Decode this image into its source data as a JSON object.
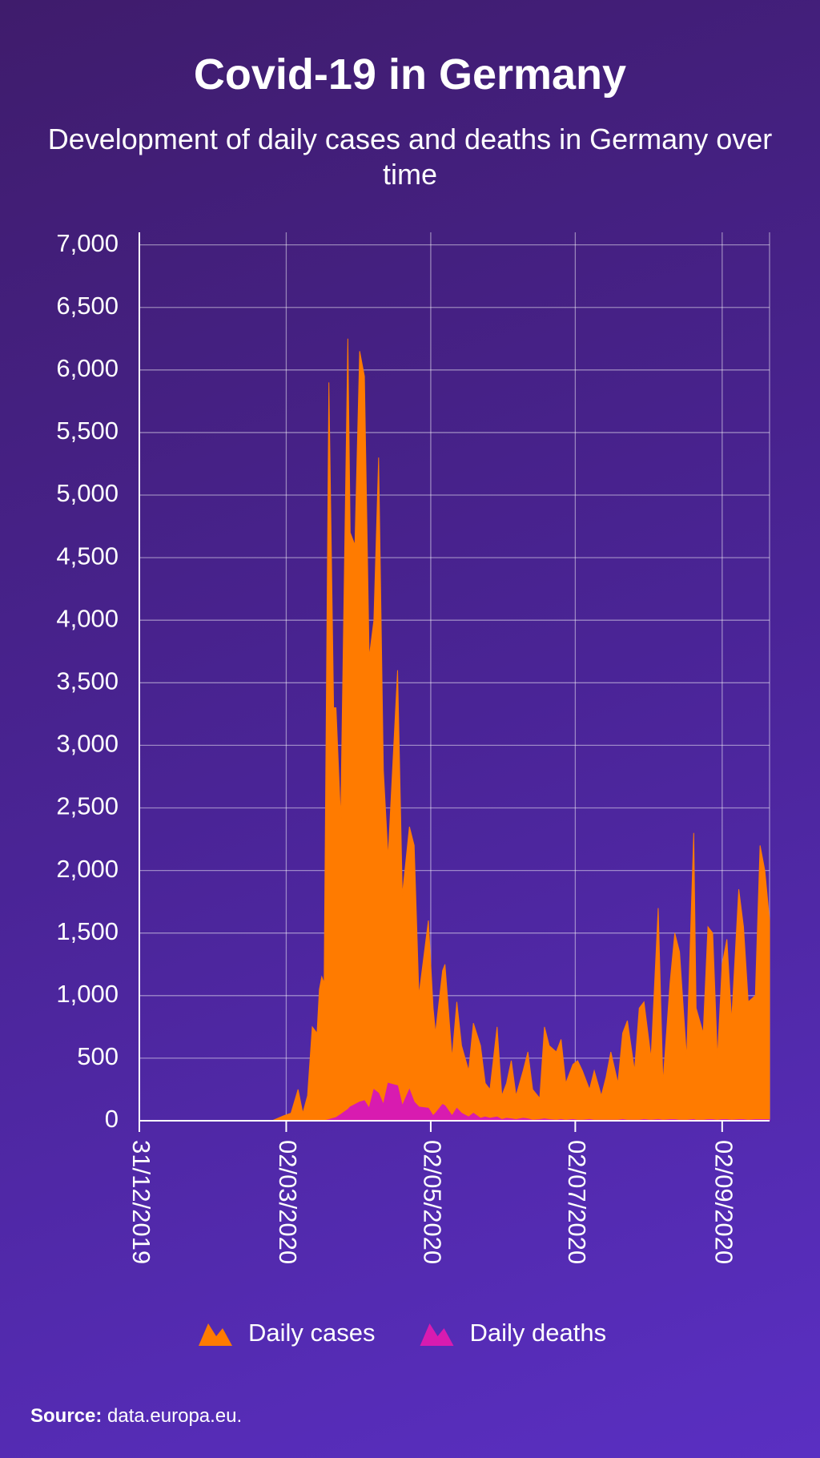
{
  "chart_data": {
    "type": "area",
    "title": "Covid-19 in Germany",
    "subtitle": "Development of daily cases and deaths in Germany over time",
    "source_label": "Source:",
    "source_text": "data.europa.eu.",
    "x": [
      "2019-12-31",
      "2020-02-25",
      "2020-03-01",
      "2020-03-04",
      "2020-03-07",
      "2020-03-09",
      "2020-03-11",
      "2020-03-13",
      "2020-03-15",
      "2020-03-16",
      "2020-03-17",
      "2020-03-18",
      "2020-03-20",
      "2020-03-22",
      "2020-03-23",
      "2020-03-25",
      "2020-03-28",
      "2020-03-29",
      "2020-03-31",
      "2020-04-02",
      "2020-04-04",
      "2020-04-06",
      "2020-04-08",
      "2020-04-10",
      "2020-04-12",
      "2020-04-14",
      "2020-04-18",
      "2020-04-20",
      "2020-04-23",
      "2020-04-25",
      "2020-04-27",
      "2020-05-01",
      "2020-05-03",
      "2020-05-04",
      "2020-05-07",
      "2020-05-08",
      "2020-05-11",
      "2020-05-13",
      "2020-05-15",
      "2020-05-18",
      "2020-05-20",
      "2020-05-23",
      "2020-05-25",
      "2020-05-27",
      "2020-05-30",
      "2020-06-01",
      "2020-06-03",
      "2020-06-05",
      "2020-06-07",
      "2020-06-10",
      "2020-06-12",
      "2020-06-14",
      "2020-06-17",
      "2020-06-19",
      "2020-06-21",
      "2020-06-24",
      "2020-06-26",
      "2020-06-28",
      "2020-07-01",
      "2020-07-03",
      "2020-07-05",
      "2020-07-08",
      "2020-07-10",
      "2020-07-13",
      "2020-07-15",
      "2020-07-17",
      "2020-07-20",
      "2020-07-22",
      "2020-07-24",
      "2020-07-27",
      "2020-07-29",
      "2020-07-31",
      "2020-08-03",
      "2020-08-06",
      "2020-08-08",
      "2020-08-11",
      "2020-08-13",
      "2020-08-15",
      "2020-08-18",
      "2020-08-21",
      "2020-08-22",
      "2020-08-25",
      "2020-08-27",
      "2020-08-29",
      "2020-08-31",
      "2020-09-02",
      "2020-09-04",
      "2020-09-06",
      "2020-09-09",
      "2020-09-11",
      "2020-09-13",
      "2020-09-16",
      "2020-09-18",
      "2020-09-20",
      "2020-09-22"
    ],
    "series": [
      {
        "name": "Daily cases",
        "color": "#ff7b00",
        "values": [
          0,
          0,
          40,
          60,
          250,
          60,
          200,
          750,
          700,
          1050,
          1150,
          1100,
          5900,
          3300,
          3300,
          2400,
          6250,
          4700,
          4600,
          6150,
          5950,
          3700,
          4000,
          5300,
          2800,
          2100,
          3600,
          1800,
          2350,
          2200,
          1000,
          1600,
          900,
          700,
          1200,
          1250,
          500,
          950,
          600,
          400,
          780,
          600,
          300,
          250,
          750,
          200,
          300,
          480,
          200,
          400,
          550,
          250,
          180,
          750,
          600,
          550,
          650,
          300,
          450,
          480,
          400,
          250,
          400,
          200,
          350,
          550,
          300,
          700,
          800,
          400,
          900,
          950,
          500,
          1700,
          300,
          1100,
          1500,
          1350,
          500,
          2300,
          900,
          700,
          1550,
          1500,
          500,
          1250,
          1450,
          800,
          1850,
          1550,
          950,
          1000,
          2200,
          2000,
          1600
        ]
      },
      {
        "name": "Daily deaths",
        "color": "#d81bb0",
        "values": [
          0,
          0,
          0,
          0,
          0,
          0,
          0,
          0,
          0,
          0,
          0,
          0,
          10,
          20,
          25,
          50,
          90,
          110,
          130,
          150,
          160,
          100,
          250,
          220,
          130,
          300,
          280,
          120,
          250,
          150,
          110,
          100,
          40,
          60,
          130,
          120,
          40,
          100,
          60,
          30,
          60,
          20,
          30,
          20,
          30,
          10,
          20,
          15,
          10,
          20,
          15,
          5,
          10,
          15,
          10,
          5,
          10,
          5,
          10,
          5,
          5,
          10,
          5,
          5,
          5,
          5,
          5,
          10,
          5,
          5,
          5,
          10,
          5,
          10,
          5,
          10,
          10,
          5,
          5,
          10,
          5,
          5,
          10,
          10,
          5,
          10,
          10,
          5,
          10,
          10,
          5,
          10,
          10,
          10,
          10
        ]
      }
    ],
    "xlim": [
      "2019-12-31",
      "2020-09-22"
    ],
    "xticks": [
      {
        "value": "2019-12-31",
        "label": "31/12/2019"
      },
      {
        "value": "2020-03-02",
        "label": "02/03/2020"
      },
      {
        "value": "2020-05-02",
        "label": "02/05/2020"
      },
      {
        "value": "2020-07-02",
        "label": "02/07/2020"
      },
      {
        "value": "2020-09-02",
        "label": "02/09/2020"
      }
    ],
    "ylim": [
      0,
      7100
    ],
    "yticks": [
      0,
      500,
      {
        "value": 1000,
        "label": "1,000"
      },
      {
        "value": 1500,
        "label": "1,500"
      },
      {
        "value": 2000,
        "label": "2,000"
      },
      {
        "value": 2500,
        "label": "2,500"
      },
      {
        "value": 3000,
        "label": "3,000"
      },
      {
        "value": 3500,
        "label": "3,500"
      },
      {
        "value": 4000,
        "label": "4,000"
      },
      {
        "value": 4500,
        "label": "4,500"
      },
      {
        "value": 5000,
        "label": "5,000"
      },
      {
        "value": 5500,
        "label": "5,500"
      },
      {
        "value": 6000,
        "label": "6,000"
      },
      {
        "value": 6500,
        "label": "6,500"
      },
      {
        "value": 7000,
        "label": "7,000"
      }
    ],
    "grid": true,
    "legend": "bottom"
  }
}
